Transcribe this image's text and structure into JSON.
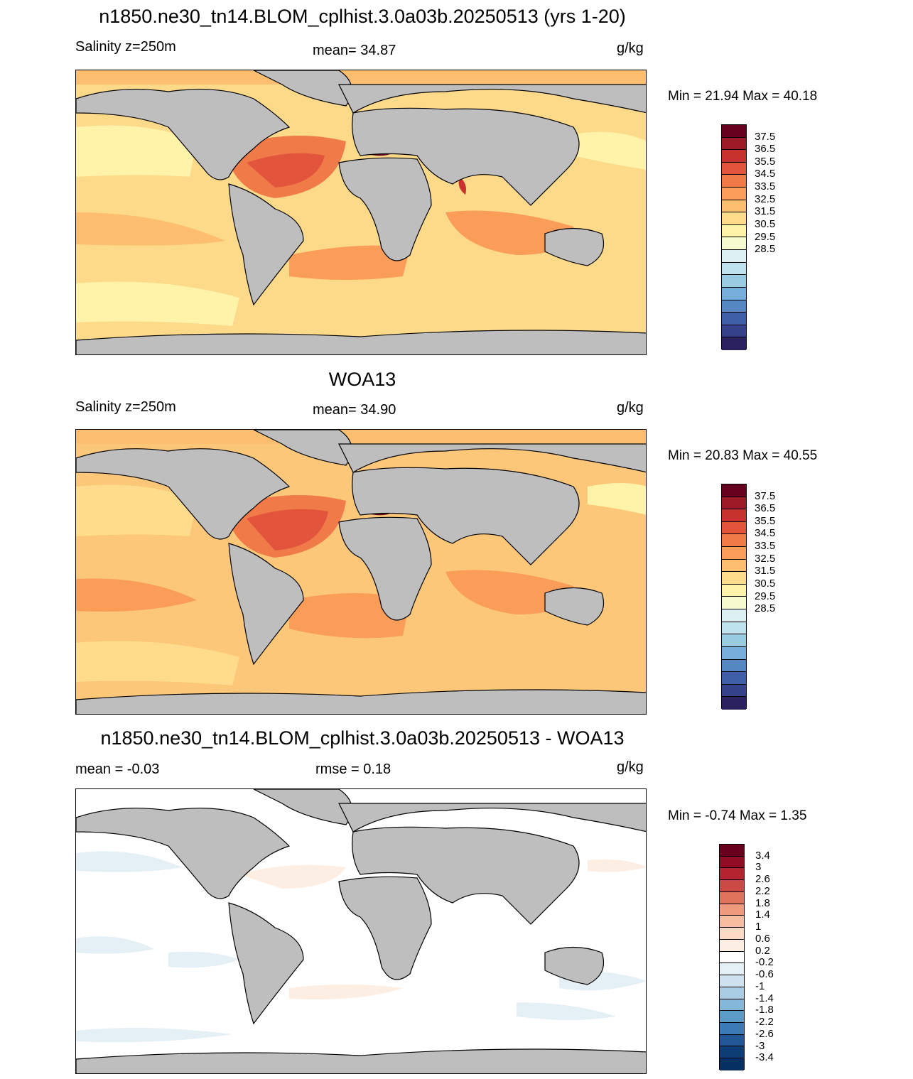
{
  "panels": [
    {
      "title": "n1850.ne30_tn14.BLOM_cplhist.3.0a03b.20250513 (yrs 1-20)",
      "left_label": "Salinity z=250m",
      "center_label": "mean=  34.87",
      "units": "g/kg",
      "minmax": "Min =  21.94 Max =  40.18",
      "colorbar_ticks": [
        "37.5",
        "36.5",
        "35.5",
        "34.5",
        "33.5",
        "32.5",
        "31.5",
        "30.5",
        "29.5",
        "28.5"
      ],
      "ocean_base_color": "#fdd98a"
    },
    {
      "title": "WOA13",
      "left_label": "Salinity z=250m",
      "center_label": "mean=  34.90",
      "units": "g/kg",
      "minmax": "Min =  20.83 Max =  40.55",
      "colorbar_ticks": [
        "37.5",
        "36.5",
        "35.5",
        "34.5",
        "33.5",
        "32.5",
        "31.5",
        "30.5",
        "29.5",
        "28.5"
      ],
      "ocean_base_color": "#fdc779"
    },
    {
      "title": "n1850.ne30_tn14.BLOM_cplhist.3.0a03b.20250513 - WOA13",
      "left_label": "mean =  -0.03",
      "center_label": "rmse =   0.18",
      "units": "g/kg",
      "minmax": "Min =  -0.74 Max =   1.35",
      "colorbar_ticks": [
        "3.4",
        "3",
        "2.6",
        "2.2",
        "1.8",
        "1.4",
        "1",
        "0.6",
        "0.2",
        "-0.2",
        "-0.6",
        "-1",
        "-1.4",
        "-1.8",
        "-2.2",
        "-2.6",
        "-3",
        "-3.4"
      ],
      "ocean_base_color": "#ffffff"
    }
  ],
  "colors": {
    "land": "#bebebe",
    "salinity_colorbar": [
      "#67001f",
      "#9c1a27",
      "#c8322e",
      "#e2543b",
      "#f07b49",
      "#f99d59",
      "#fdbe6f",
      "#fedc8c",
      "#fff2a9",
      "#f5fbcf",
      "#ddf1f2",
      "#bee3ee",
      "#9acce1",
      "#75addb",
      "#5587c2",
      "#3f5fa8",
      "#35418a",
      "#2c2160"
    ],
    "anomaly_colorbar": [
      "#67001f",
      "#930c26",
      "#b4232f",
      "#cc4a45",
      "#de735c",
      "#ef9a7c",
      "#f6bda0",
      "#fcd9c4",
      "#fdeee3",
      "#ffffff",
      "#e5eff6",
      "#cde2ee",
      "#aacde4",
      "#85b8d8",
      "#5b9bc8",
      "#3b7ab5",
      "#215797",
      "#0c3d75",
      "#053061"
    ]
  }
}
